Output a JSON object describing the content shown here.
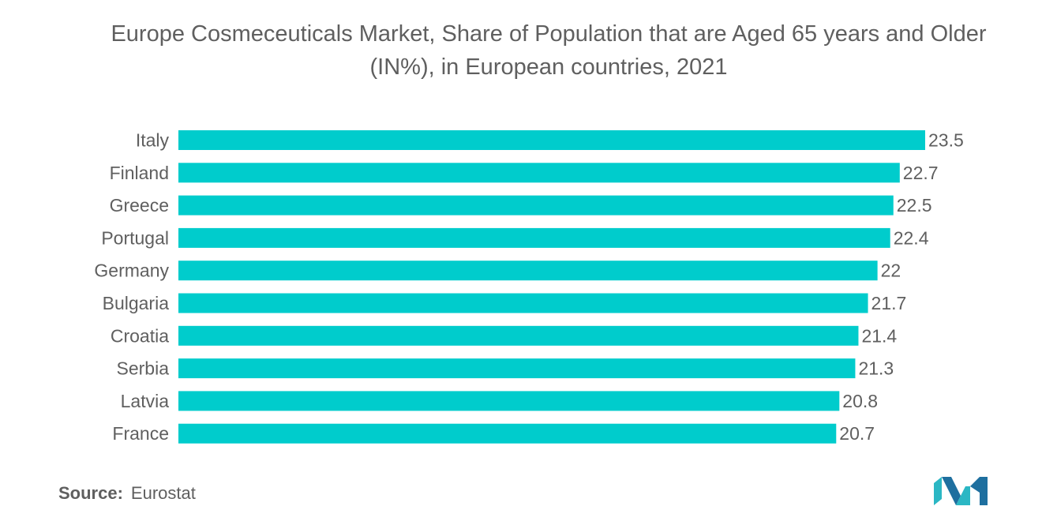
{
  "title": "Europe Cosmeceuticals Market, Share of Population that are Aged 65 years and Older (IN%), in European countries, 2021",
  "source": {
    "label": "Source:",
    "value": "Eurostat"
  },
  "colors": {
    "bar": "#00cccc",
    "text": "#5f5f5f"
  },
  "chart_data": {
    "type": "bar",
    "orientation": "horizontal",
    "title": "Europe Cosmeceuticals Market, Share of Population that are Aged 65 years and Older (IN%), in European countries, 2021",
    "categories": [
      "Italy",
      "Finland",
      "Greece",
      "Portugal",
      "Germany",
      "Bulgaria",
      "Croatia",
      "Serbia",
      "Latvia",
      "France"
    ],
    "values": [
      23.5,
      22.7,
      22.5,
      22.4,
      22,
      21.7,
      21.4,
      21.3,
      20.8,
      20.7
    ],
    "data_labels": [
      "23.5",
      "22.7",
      "22.5",
      "22.4",
      "22",
      "21.7",
      "21.4",
      "21.3",
      "20.8",
      "20.7"
    ],
    "xlim": [
      0,
      23.5
    ],
    "grid": false,
    "legend": "none"
  }
}
